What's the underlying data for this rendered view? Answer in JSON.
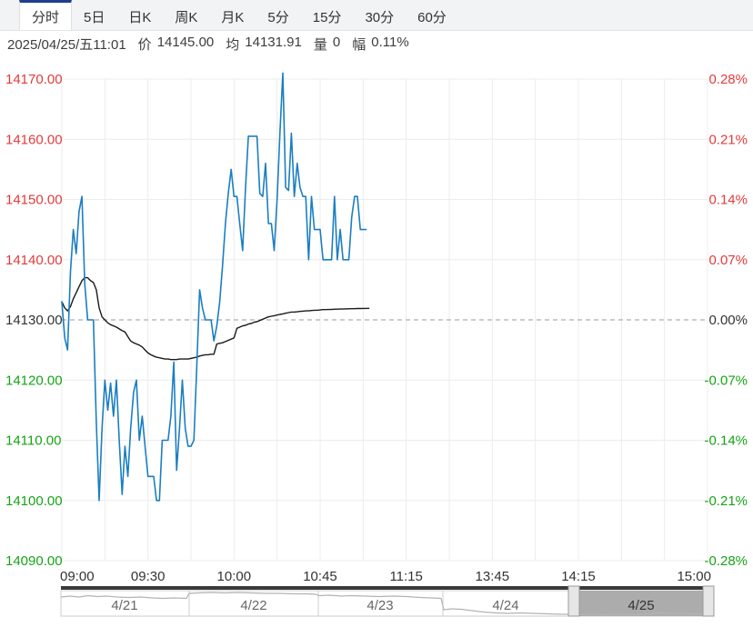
{
  "tab_bar": {
    "tabs": [
      {
        "label": "分时",
        "active": true
      },
      {
        "label": "5日",
        "active": false
      },
      {
        "label": "日K",
        "active": false
      },
      {
        "label": "周K",
        "active": false
      },
      {
        "label": "月K",
        "active": false
      },
      {
        "label": "5分",
        "active": false
      },
      {
        "label": "15分",
        "active": false
      },
      {
        "label": "30分",
        "active": false
      },
      {
        "label": "60分",
        "active": false
      }
    ]
  },
  "info_bar": {
    "datetime": "2025/04/25/五11:01",
    "price_label": "价",
    "price_value": "14145.00",
    "avg_label": "均",
    "avg_value": "14131.91",
    "volume_label": "量",
    "volume_value": "0",
    "range_label": "幅",
    "range_value": "0.11%"
  },
  "colors": {
    "up": "#e23b3b",
    "down": "#17a317",
    "neutral": "#333333",
    "price_line": "#1b7ec2",
    "avg_line": "#1a1a1a",
    "grid": "#ececec",
    "dashed": "#999999",
    "axis_text": "#333333",
    "nav_selected_fill": "#acacac",
    "nav_spark": "#b3b3b3",
    "nav_dark_bar": "#3a3a3a",
    "nav_border": "#cccccc",
    "nav_handle_fill": "#e6e6e6",
    "nav_handle_border": "#999999",
    "nav_text": "#666666",
    "nav_text_selected": "#333333"
  },
  "chart_data": {
    "type": "line",
    "ylim": [
      14090,
      14170
    ],
    "pct_baseline_price": 14130,
    "session_total_minutes": 225,
    "y_ticks_left": [
      {
        "label": "14170.00",
        "color": "up"
      },
      {
        "label": "14160.00",
        "color": "up"
      },
      {
        "label": "14150.00",
        "color": "up"
      },
      {
        "label": "14140.00",
        "color": "up"
      },
      {
        "label": "14130.00",
        "color": "neutral"
      },
      {
        "label": "14120.00",
        "color": "down"
      },
      {
        "label": "14110.00",
        "color": "down"
      },
      {
        "label": "14100.00",
        "color": "down"
      },
      {
        "label": "14090.00",
        "color": "down"
      }
    ],
    "y_ticks_right": [
      {
        "label": "0.28%",
        "color": "up"
      },
      {
        "label": "0.21%",
        "color": "up"
      },
      {
        "label": "0.14%",
        "color": "up"
      },
      {
        "label": "0.07%",
        "color": "up"
      },
      {
        "label": "0.00%",
        "color": "neutral"
      },
      {
        "label": "-0.07%",
        "color": "down"
      },
      {
        "label": "-0.14%",
        "color": "down"
      },
      {
        "label": "-0.21%",
        "color": "down"
      },
      {
        "label": "-0.28%",
        "color": "down"
      }
    ],
    "x_ticks": [
      {
        "label": "09:00",
        "minute": 0
      },
      {
        "label": "09:30",
        "minute": 30
      },
      {
        "label": "10:00",
        "minute": 60
      },
      {
        "label": "10:45",
        "minute": 90
      },
      {
        "label": "11:15",
        "minute": 120
      },
      {
        "label": "13:45",
        "minute": 150
      },
      {
        "label": "14:15",
        "minute": 180
      },
      {
        "label": "15:00",
        "minute": 225
      }
    ],
    "grid_minor_step_minutes": 15,
    "series": [
      {
        "name": "price",
        "color_key": "price_line",
        "start_minute": 0,
        "values": [
          14133,
          14127,
          14125,
          14138,
          14145,
          14141,
          14148,
          14150.5,
          14136,
          14130,
          14130,
          14130,
          14113,
          14100,
          14112,
          14120,
          14115,
          14119.5,
          14114,
          14120,
          14110,
          14101,
          14109,
          14104,
          14112,
          14118,
          14120,
          14110,
          14114,
          14109,
          14104,
          14104,
          14104,
          14100,
          14100,
          14110,
          14110,
          14110,
          14114,
          14123,
          14105,
          14112,
          14120,
          14112,
          14109,
          14109,
          14110,
          14122,
          14135,
          14132,
          14130,
          14130,
          14130,
          14126.5,
          14129,
          14133,
          14139,
          14146,
          14151,
          14155,
          14150.5,
          14150.5,
          14146,
          14141.5,
          14152,
          14160.5,
          14160.5,
          14160.5,
          14160.5,
          14151,
          14150.5,
          14156,
          14146,
          14146,
          14141.5,
          14150,
          14161,
          14171,
          14152,
          14151.5,
          14161,
          14150.5,
          14156,
          14152,
          14150.5,
          14150.5,
          14140,
          14150.5,
          14145,
          14145,
          14145,
          14140,
          14140,
          14140,
          14140,
          14150.5,
          14140,
          14145,
          14140,
          14140,
          14140,
          14147,
          14150.5,
          14150.5,
          14145,
          14145,
          14145
        ]
      },
      {
        "name": "average",
        "color_key": "avg_line",
        "start_minute": 0,
        "values": [
          14133,
          14132,
          14131.5,
          14132.2,
          14133.5,
          14134.5,
          14135.5,
          14136.5,
          14137,
          14137,
          14136.5,
          14136.2,
          14135,
          14132,
          14130.5,
          14130,
          14129.5,
          14129.2,
          14129,
          14128.8,
          14128.5,
          14128.2,
          14128,
          14127.2,
          14126.5,
          14126.2,
          14126,
          14125.8,
          14125.5,
          14125,
          14124.5,
          14124.2,
          14124,
          14123.8,
          14123.7,
          14123.6,
          14123.5,
          14123.5,
          14123.4,
          14123.4,
          14123.4,
          14123.5,
          14123.5,
          14123.5,
          14123.5,
          14123.6,
          14123.7,
          14123.8,
          14124,
          14124.1,
          14124.2,
          14124.2,
          14124.3,
          14124.3,
          14126,
          14126.1,
          14126.2,
          14126.4,
          14126.6,
          14126.8,
          14127,
          14128.6,
          14128.8,
          14129,
          14129.1,
          14129.3,
          14129.4,
          14129.6,
          14129.7,
          14129.9,
          14130.1,
          14130.3,
          14130.5,
          14130.6,
          14130.7,
          14130.8,
          14130.9,
          14131,
          14131.1,
          14131.2,
          14131.3,
          14131.3,
          14131.35,
          14131.4,
          14131.45,
          14131.5,
          14131.5,
          14131.55,
          14131.6,
          14131.6,
          14131.65,
          14131.7,
          14131.7,
          14131.72,
          14131.74,
          14131.76,
          14131.78,
          14131.8,
          14131.8,
          14131.82,
          14131.84,
          14131.85,
          14131.86,
          14131.88,
          14131.89,
          14131.9,
          14131.9,
          14131.91
        ]
      }
    ],
    "navigator": {
      "dates": [
        {
          "label": "4/21",
          "selected": false
        },
        {
          "label": "4/22",
          "selected": false
        },
        {
          "label": "4/23",
          "selected": false
        },
        {
          "label": "4/24",
          "selected": false
        },
        {
          "label": "4/25",
          "selected": true
        }
      ],
      "sparkline": [
        [
          0,
          7
        ],
        [
          10,
          6
        ],
        [
          20,
          7
        ],
        [
          30,
          5.5
        ],
        [
          40,
          6.5
        ],
        [
          50,
          6
        ],
        [
          62,
          7
        ],
        [
          75,
          7.5
        ],
        [
          88,
          7
        ],
        [
          100,
          8
        ],
        [
          112,
          8.5
        ],
        [
          125,
          8
        ],
        [
          138,
          8.5
        ],
        [
          141,
          3
        ],
        [
          150,
          2.5
        ],
        [
          165,
          2
        ],
        [
          180,
          2.5
        ],
        [
          195,
          2
        ],
        [
          210,
          2.5
        ],
        [
          225,
          3
        ],
        [
          240,
          3
        ],
        [
          255,
          3.5
        ],
        [
          270,
          3.5
        ],
        [
          280,
          4
        ],
        [
          284,
          5.5
        ],
        [
          295,
          5
        ],
        [
          308,
          6
        ],
        [
          320,
          5.5
        ],
        [
          335,
          6
        ],
        [
          350,
          6.5
        ],
        [
          365,
          6
        ],
        [
          380,
          6.5
        ],
        [
          395,
          7.5
        ],
        [
          408,
          8
        ],
        [
          418,
          8.5
        ],
        [
          421,
          21
        ],
        [
          430,
          20
        ],
        [
          440,
          20.5
        ],
        [
          452,
          22
        ],
        [
          465,
          23.5
        ],
        [
          478,
          24.5
        ],
        [
          492,
          25
        ],
        [
          505,
          24.5
        ],
        [
          520,
          25
        ],
        [
          535,
          25.5
        ],
        [
          550,
          26
        ],
        [
          558,
          26
        ],
        [
          570,
          26.5
        ],
        [
          585,
          26
        ],
        [
          600,
          26.5
        ],
        [
          615,
          26
        ],
        [
          630,
          26.5
        ],
        [
          645,
          25.5
        ],
        [
          658,
          24.5
        ],
        [
          672,
          25
        ],
        [
          688,
          25.5
        ],
        [
          706,
          25.5
        ]
      ]
    }
  }
}
